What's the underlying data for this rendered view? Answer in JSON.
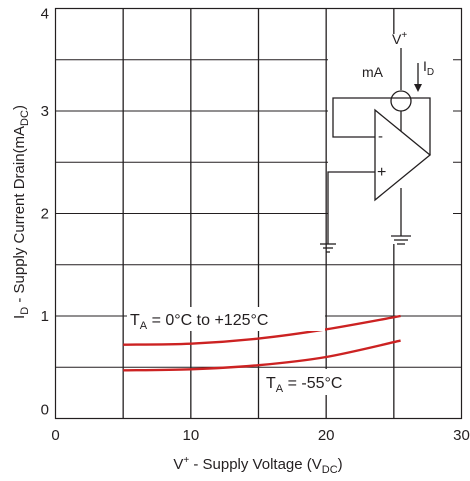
{
  "chart_data": {
    "type": "line",
    "xlabel": {
      "main": "V",
      "sup": "+",
      "mid": " - Supply Voltage (V",
      "sub": "DC",
      "end": ")"
    },
    "ylabel": {
      "pre": "I",
      "sub1": "D",
      "mid": " - Supply Current Drain(mA",
      "sub2": "DC",
      "end": ")"
    },
    "xlim": [
      0,
      30
    ],
    "ylim": [
      0,
      4
    ],
    "xticks": [
      0,
      10,
      20,
      30
    ],
    "yticks": [
      0,
      1,
      2,
      3,
      4
    ],
    "grid": true,
    "accent": "#cc2222",
    "series": [
      {
        "name": "T_A = 0°C to +125°C",
        "x": [
          5,
          10,
          15,
          20,
          25.5
        ],
        "y": [
          0.72,
          0.73,
          0.78,
          0.87,
          1.0
        ]
      },
      {
        "name": "T_A = -55°C",
        "x": [
          5,
          10,
          15,
          20,
          25.5
        ],
        "y": [
          0.47,
          0.48,
          0.52,
          0.6,
          0.76
        ]
      }
    ],
    "annotations": [
      {
        "pre": "T",
        "sub": "A",
        "post": " = 0°C to +125°C"
      },
      {
        "pre": "T",
        "sub": "A",
        "post": " = -55°C"
      }
    ],
    "schematic": {
      "supply": {
        "pre": "V",
        "sup": "+"
      },
      "meter": "mA",
      "current": {
        "pre": "I",
        "sub": "D"
      },
      "minus": "-",
      "plus": "+"
    }
  }
}
